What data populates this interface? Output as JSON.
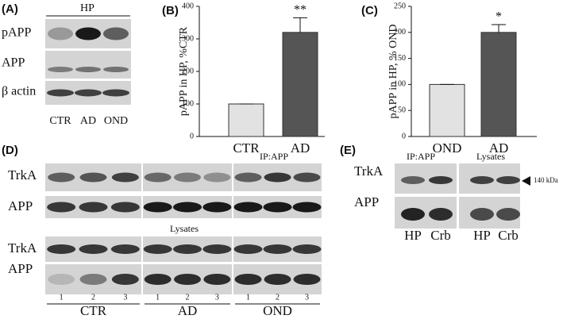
{
  "panel_labels": [
    "(A)",
    "(B)",
    "(C)",
    "(D)",
    "(E)"
  ],
  "panel_a": {
    "header": "HP",
    "rows": [
      "pAPP",
      "APP",
      "β actin"
    ],
    "lanes": [
      "CTR",
      "AD",
      "OND"
    ]
  },
  "chart_data": [
    {
      "type": "bar",
      "y_label": "pAPP in HP, %CTR",
      "categories": [
        "CTR",
        "AD"
      ],
      "values": [
        100,
        320
      ],
      "errors": [
        0,
        45
      ],
      "colors": [
        "#e2e2e2",
        "#555555"
      ],
      "ylim": [
        0,
        400
      ],
      "yticks": [
        0,
        100,
        200,
        300,
        400
      ],
      "annotation": "**"
    },
    {
      "type": "bar",
      "y_label": "pAPP in HP, % OND",
      "categories": [
        "OND",
        "AD"
      ],
      "values": [
        100,
        200
      ],
      "errors": [
        0,
        15
      ],
      "colors": [
        "#e2e2e2",
        "#555555"
      ],
      "ylim": [
        0,
        250
      ],
      "yticks": [
        0,
        50,
        100,
        150,
        200,
        250
      ],
      "annotation": "*"
    }
  ],
  "panel_d": {
    "ip_header": "IP:APP",
    "lysates_header": "Lysates",
    "rows_top": [
      "TrkA",
      "APP"
    ],
    "rows_bottom": [
      "TrkA",
      "APP"
    ],
    "lane_numbers": [
      "1",
      "2",
      "3",
      "1",
      "2",
      "3",
      "1",
      "2",
      "3"
    ],
    "groups": [
      "CTR",
      "AD",
      "OND"
    ]
  },
  "panel_e": {
    "ip_header": "IP:APP",
    "lysates_header": "Lysates",
    "marker": "140 kDa",
    "rows": [
      "TrkA",
      "APP"
    ],
    "lanes": [
      "HP",
      "Crb",
      "HP",
      "Crb"
    ]
  }
}
